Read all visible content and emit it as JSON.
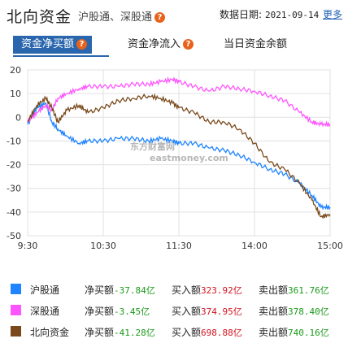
{
  "header": {
    "title": "北向资金",
    "subtitle": "沪股通、深股通",
    "help_glyph": "?",
    "date_label": "数据日期:",
    "date_value": "2021-09-14",
    "more_label": "更多"
  },
  "tabs": [
    {
      "label": "资金净买额",
      "active": true
    },
    {
      "label": "资金净流入",
      "active": false
    },
    {
      "label": "当日资金余额",
      "active": false
    }
  ],
  "watermark": {
    "cn": "东方财富网",
    "en": "eastmoney.com"
  },
  "chart_data": {
    "type": "line",
    "x_ticks": [
      "9:30",
      "10:30",
      "11:30",
      "14:00",
      "15:00"
    ],
    "y_ticks": [
      20,
      10,
      0,
      -10,
      -20,
      -30,
      -40,
      -50
    ],
    "ylim": [
      -50,
      20
    ],
    "grid": true,
    "series": [
      {
        "name": "沪股通",
        "color": "#1e84ff",
        "points": [
          [
            0,
            -3
          ],
          [
            0.03,
            4
          ],
          [
            0.06,
            6
          ],
          [
            0.08,
            -2
          ],
          [
            0.1,
            -5
          ],
          [
            0.13,
            -8
          ],
          [
            0.17,
            -11
          ],
          [
            0.2,
            -10
          ],
          [
            0.25,
            -10
          ],
          [
            0.3,
            -9
          ],
          [
            0.35,
            -9
          ],
          [
            0.4,
            -10
          ],
          [
            0.44,
            -9
          ],
          [
            0.48,
            -10
          ],
          [
            0.5,
            -11
          ],
          [
            0.55,
            -11
          ],
          [
            0.6,
            -13
          ],
          [
            0.65,
            -14
          ],
          [
            0.7,
            -16
          ],
          [
            0.75,
            -19
          ],
          [
            0.8,
            -22
          ],
          [
            0.85,
            -24
          ],
          [
            0.9,
            -28
          ],
          [
            0.94,
            -33
          ],
          [
            0.97,
            -38
          ],
          [
            1,
            -38
          ]
        ]
      },
      {
        "name": "深股通",
        "color": "#ff55ff",
        "points": [
          [
            0,
            -2
          ],
          [
            0.03,
            2
          ],
          [
            0.06,
            5
          ],
          [
            0.08,
            3
          ],
          [
            0.1,
            8
          ],
          [
            0.13,
            10
          ],
          [
            0.17,
            12
          ],
          [
            0.2,
            13
          ],
          [
            0.25,
            13
          ],
          [
            0.3,
            13
          ],
          [
            0.35,
            14
          ],
          [
            0.4,
            14
          ],
          [
            0.44,
            15
          ],
          [
            0.48,
            16
          ],
          [
            0.5,
            15
          ],
          [
            0.55,
            13
          ],
          [
            0.6,
            11
          ],
          [
            0.65,
            13
          ],
          [
            0.7,
            12
          ],
          [
            0.75,
            11
          ],
          [
            0.8,
            9
          ],
          [
            0.85,
            7
          ],
          [
            0.9,
            2
          ],
          [
            0.94,
            -2
          ],
          [
            0.97,
            -3
          ],
          [
            1,
            -3
          ]
        ]
      },
      {
        "name": "北向资金",
        "color": "#7a4a1c",
        "points": [
          [
            0,
            -2
          ],
          [
            0.03,
            5
          ],
          [
            0.06,
            8
          ],
          [
            0.08,
            4
          ],
          [
            0.1,
            -2
          ],
          [
            0.13,
            3
          ],
          [
            0.17,
            5
          ],
          [
            0.2,
            2
          ],
          [
            0.25,
            4
          ],
          [
            0.3,
            7
          ],
          [
            0.35,
            8
          ],
          [
            0.4,
            9
          ],
          [
            0.44,
            8
          ],
          [
            0.48,
            6
          ],
          [
            0.5,
            4
          ],
          [
            0.55,
            2
          ],
          [
            0.6,
            -2
          ],
          [
            0.65,
            -2
          ],
          [
            0.7,
            -5
          ],
          [
            0.75,
            -11
          ],
          [
            0.8,
            -19
          ],
          [
            0.85,
            -22
          ],
          [
            0.9,
            -28
          ],
          [
            0.94,
            -35
          ],
          [
            0.97,
            -42
          ],
          [
            1,
            -41
          ]
        ]
      }
    ]
  },
  "legend": [
    {
      "name": "沪股通",
      "color": "#1e84ff",
      "net_label": "净买额",
      "net_value": "-37.84亿",
      "buy_label": "买入额",
      "buy_value": "323.92亿",
      "sell_label": "卖出额",
      "sell_value": "361.76亿"
    },
    {
      "name": "深股通",
      "color": "#ff55ff",
      "net_label": "净买额",
      "net_value": "-3.45亿",
      "buy_label": "买入额",
      "buy_value": "374.95亿",
      "sell_label": "卖出额",
      "sell_value": "378.40亿"
    },
    {
      "name": "北向资金",
      "color": "#7a4a1c",
      "net_label": "净买额",
      "net_value": "-41.28亿",
      "buy_label": "买入额",
      "buy_value": "698.88亿",
      "sell_label": "卖出额",
      "sell_value": "740.16亿"
    }
  ]
}
